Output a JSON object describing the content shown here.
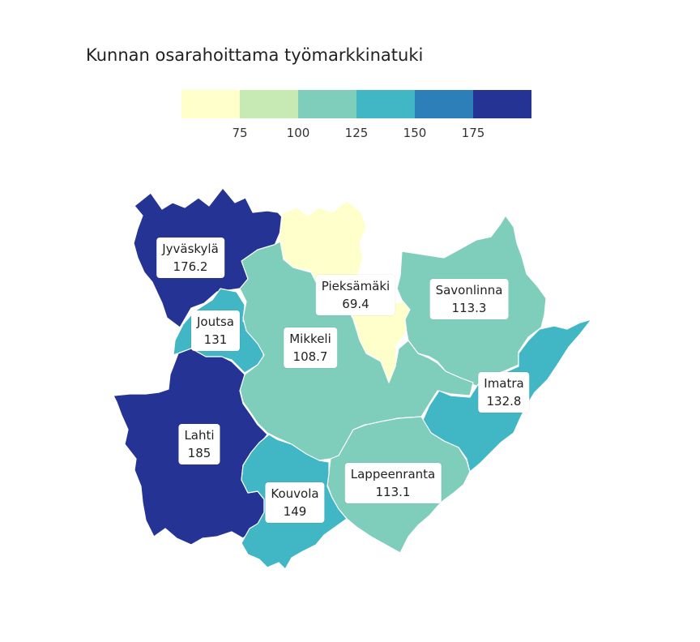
{
  "title": "Kunnan osarahoittama työmarkkinatuki",
  "legend": {
    "colors": [
      "#ffffcc",
      "#c7e9b4",
      "#7fcdbb",
      "#41b6c4",
      "#2c7fb8",
      "#253494"
    ],
    "ticks": [
      "75",
      "100",
      "125",
      "150",
      "175"
    ]
  },
  "regions": [
    {
      "name": "Jyväskylä",
      "value": "176.2",
      "color": "#253494"
    },
    {
      "name": "Pieksämäki",
      "value": "69.4",
      "color": "#ffffcc"
    },
    {
      "name": "Savonlinna",
      "value": "113.3",
      "color": "#7fcdbb"
    },
    {
      "name": "Joutsa",
      "value": "131",
      "color": "#41b6c4"
    },
    {
      "name": "Mikkeli",
      "value": "108.7",
      "color": "#7fcdbb"
    },
    {
      "name": "Imatra",
      "value": "132.8",
      "color": "#41b6c4"
    },
    {
      "name": "Lahti",
      "value": "185",
      "color": "#253494"
    },
    {
      "name": "Lappeenranta",
      "value": "113.1",
      "color": "#7fcdbb"
    },
    {
      "name": "Kouvola",
      "value": "149",
      "color": "#41b6c4"
    }
  ]
}
